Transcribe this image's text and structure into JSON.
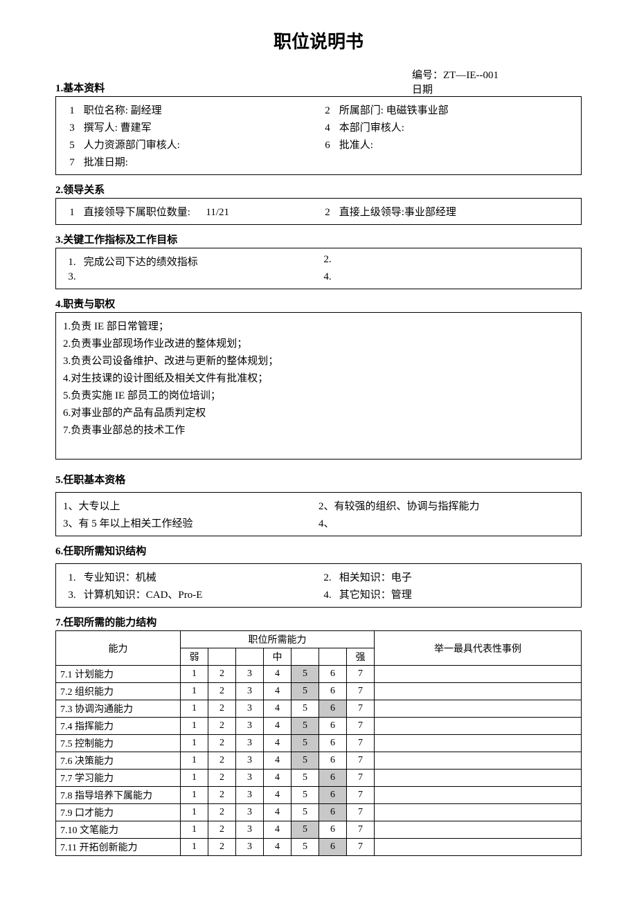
{
  "title": "职位说明书",
  "doc_number_label": "编号：",
  "doc_number": "ZT—IE--001",
  "date_label": "日期",
  "sections": {
    "s1": {
      "header": "1.基本资料",
      "items": [
        {
          "n": "1",
          "label": "职位名称:",
          "value": "副经理"
        },
        {
          "n": "2",
          "label": "所属部门:",
          "value": "电磁铁事业部"
        },
        {
          "n": "3",
          "label": "撰写人:",
          "value": "曹建军"
        },
        {
          "n": "4",
          "label": "本部门审核人:",
          "value": ""
        },
        {
          "n": "5",
          "label": "人力资源部门审核人:",
          "value": ""
        },
        {
          "n": "6",
          "label": "批准人:",
          "value": ""
        },
        {
          "n": "7",
          "label": "批准日期:",
          "value": ""
        }
      ]
    },
    "s2": {
      "header": "2.领导关系",
      "items": [
        {
          "n": "1",
          "label": "直接领导下属职位数量:",
          "value": "11/21"
        },
        {
          "n": "2",
          "label": "直接上级领导:",
          "value": "事业部经理"
        }
      ]
    },
    "s3": {
      "header": "3.关键工作指标及工作目标",
      "items": [
        {
          "n": "1.",
          "text": "完成公司下达的绩效指标"
        },
        {
          "n": "2.",
          "text": ""
        },
        {
          "n": "3.",
          "text": ""
        },
        {
          "n": "4.",
          "text": ""
        }
      ]
    },
    "s4": {
      "header": "4.职责与职权",
      "items": [
        "1.负责 IE 部日常管理；",
        "2.负责事业部现场作业改进的整体规划；",
        "3.负责公司设备维护、改进与更新的整体规划；",
        "4.对生技课的设计图纸及相关文件有批准权；",
        "5.负责实施 IE 部员工的岗位培训；",
        "6.对事业部的产品有品质判定权",
        "7.负责事业部总的技术工作"
      ]
    },
    "s5": {
      "header": "5.任职基本资格",
      "items": [
        {
          "n": "1、",
          "text": "大专以上"
        },
        {
          "n": "2、",
          "text": "有较强的组织、协调与指挥能力"
        },
        {
          "n": "3、",
          "text": "有 5 年以上相关工作经验"
        },
        {
          "n": "4、",
          "text": ""
        }
      ]
    },
    "s6": {
      "header": "6.任职所需知识结构",
      "items": [
        {
          "n": "1.",
          "label": "专业知识：",
          "value": "机械"
        },
        {
          "n": "2.",
          "label": "相关知识：",
          "value": "电子"
        },
        {
          "n": "3.",
          "label": "计算机知识：",
          "value": "CAD、Pro-E"
        },
        {
          "n": "4.",
          "label": "其它知识：",
          "value": "管理"
        }
      ]
    },
    "s7": {
      "header": "7.任职所需的能力结构",
      "col_ability": "能力",
      "col_required": "职位所需能力",
      "col_example": "举一最具代表性事例",
      "scale_low": "弱",
      "scale_mid": "中",
      "scale_high": "强",
      "rows": [
        {
          "label": "7.1 计划能力",
          "hl": 5
        },
        {
          "label": "7.2 组织能力",
          "hl": 5
        },
        {
          "label": "7.3 协调沟通能力",
          "hl": 6
        },
        {
          "label": "7.4 指挥能力",
          "hl": 5
        },
        {
          "label": "7.5 控制能力",
          "hl": 5
        },
        {
          "label": "7.6 决策能力",
          "hl": 5
        },
        {
          "label": "7.7 学习能力",
          "hl": 6
        },
        {
          "label": "7.8 指导培养下属能力",
          "hl": 6
        },
        {
          "label": "7.9 口才能力",
          "hl": 6
        },
        {
          "label": "7.10 文笔能力",
          "hl": 5
        },
        {
          "label": "7.11 开拓创新能力",
          "hl": 6
        }
      ]
    }
  }
}
